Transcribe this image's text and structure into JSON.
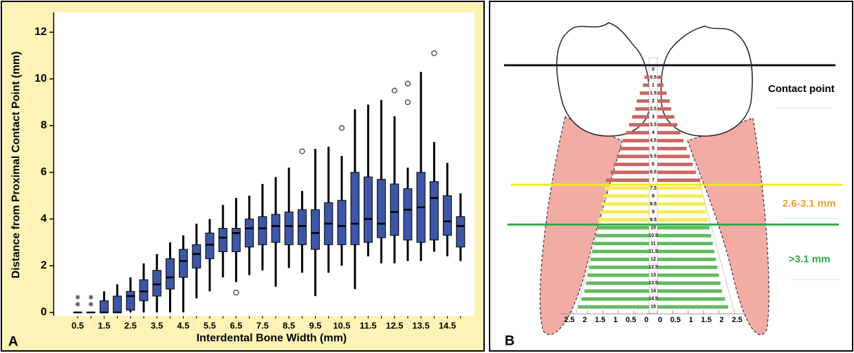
{
  "chart_data": [
    {
      "type": "box",
      "y_label": "Distance from Proximal Contact Point (mm)",
      "x_label": "Interdental Bone Width (mm)",
      "panel_label": "A",
      "categories": [
        "0.5",
        null,
        "1.5",
        null,
        "2.5",
        null,
        "3.5",
        null,
        "4.5",
        null,
        "5.5",
        null,
        "6.5",
        null,
        "7.5",
        null,
        "8.5",
        null,
        "9.5",
        null,
        "10.5",
        null,
        "11.5",
        null,
        "12.5",
        null,
        "13.5",
        null,
        "14.5",
        null
      ],
      "min": [
        0,
        0,
        0,
        0,
        0,
        0,
        0,
        0,
        0,
        0.6,
        0.9,
        1.5,
        1.3,
        1.6,
        1.8,
        1.1,
        1.9,
        1.7,
        0.7,
        1.7,
        2.0,
        1.0,
        2.4,
        2.1,
        2.1,
        2.2,
        2.2,
        2.6,
        2.4,
        2.2
      ],
      "q1": [
        0,
        0,
        0,
        0,
        0.1,
        0.5,
        0.7,
        1.0,
        1.5,
        1.9,
        2.3,
        2.6,
        2.6,
        2.8,
        2.9,
        3.0,
        2.9,
        2.9,
        2.7,
        2.9,
        2.9,
        2.9,
        3.0,
        3.2,
        3.3,
        3.1,
        3.0,
        3.1,
        3.3,
        2.8
      ],
      "median": [
        0,
        0,
        0,
        0,
        0.7,
        0.9,
        1.2,
        1.5,
        2.2,
        2.5,
        2.9,
        3.2,
        3.4,
        3.6,
        3.6,
        3.7,
        3.7,
        3.7,
        3.4,
        3.8,
        3.7,
        3.8,
        4.0,
        3.8,
        4.3,
        4.4,
        4.5,
        4.9,
        3.9,
        3.7
      ],
      "q3": [
        0,
        0,
        0.5,
        0.7,
        0.9,
        1.4,
        1.8,
        2.3,
        2.7,
        2.9,
        3.4,
        3.6,
        3.6,
        4.0,
        4.1,
        4.2,
        4.3,
        4.4,
        4.4,
        4.7,
        4.8,
        6.0,
        5.8,
        5.7,
        5.5,
        5.3,
        6.0,
        5.6,
        5.0,
        4.1
      ],
      "max": [
        0,
        0,
        0.9,
        1.2,
        1.5,
        2.1,
        2.5,
        3.0,
        3.3,
        3.8,
        4.0,
        4.6,
        4.9,
        5.0,
        5.5,
        5.8,
        6.2,
        5.2,
        7.0,
        7.1,
        6.7,
        8.7,
        8.9,
        9.1,
        8.4,
        6.2,
        10.3,
        7.3,
        6.4,
        5.1
      ],
      "outliers": [
        [],
        [],
        [],
        [],
        [],
        [],
        [],
        [],
        [],
        [],
        [],
        [],
        [
          0.85
        ],
        [],
        [],
        [],
        [],
        [
          6.9
        ],
        [],
        [],
        [
          7.9
        ],
        [],
        [],
        [],
        [
          9.5
        ],
        [
          9.8,
          9.0
        ],
        [],
        [
          11.1
        ],
        [],
        []
      ],
      "extremes": [
        [
          0.35,
          0.65
        ],
        [
          0.35,
          0.65
        ],
        [],
        [],
        [],
        [],
        [],
        [],
        [],
        [],
        [],
        [],
        [],
        [],
        [],
        [],
        [],
        [],
        [],
        [],
        [],
        [],
        [],
        [],
        [],
        [],
        [],
        [],
        [],
        []
      ],
      "color": "#3d56a6",
      "ylim": [
        -0.15,
        12.85
      ],
      "yticks": [
        0,
        2,
        4,
        6,
        8,
        10,
        12
      ]
    },
    {
      "type": "butterfly",
      "panel_label": "B",
      "categories": [
        "0",
        "0.5",
        "1",
        "1.5",
        "2",
        "2.5",
        "3",
        "3.5",
        "4",
        "4.5",
        "5",
        "5.5",
        "6",
        "6.5",
        "7",
        "7.5",
        "8",
        "8.5",
        "9",
        "9.5",
        "10",
        "10.5",
        "11",
        "11.5",
        "12",
        "12.5",
        "13",
        "13.5",
        "14",
        "14.5",
        "15"
      ],
      "values": [
        0,
        0.15,
        0.2,
        0.3,
        0.4,
        0.45,
        0.55,
        0.65,
        0.75,
        0.85,
        0.95,
        1.05,
        1.15,
        1.25,
        1.4,
        1.45,
        1.5,
        1.55,
        1.6,
        1.65,
        1.7,
        1.75,
        1.8,
        1.85,
        1.9,
        1.95,
        2.0,
        2.05,
        2.1,
        2.2,
        2.3
      ],
      "colors": [
        "#c8675f",
        "#c8675f",
        "#c8675f",
        "#c8675f",
        "#c8675f",
        "#c8675f",
        "#c8675f",
        "#c8675f",
        "#c8675f",
        "#c8675f",
        "#c8675f",
        "#c8675f",
        "#c8675f",
        "#c8675f",
        "#c8675f",
        "#f3eb5a",
        "#f3eb5a",
        "#f3eb5a",
        "#f3eb5a",
        "#f3eb5a",
        "#62bb5e",
        "#62bb5e",
        "#62bb5e",
        "#62bb5e",
        "#62bb5e",
        "#62bb5e",
        "#62bb5e",
        "#62bb5e",
        "#62bb5e",
        "#62bb5e",
        "#62bb5e"
      ],
      "xlim": [
        0,
        2.5
      ],
      "xticks": [
        0,
        0.5,
        1,
        1.5,
        2,
        2.5
      ],
      "annotations": [
        "Contact point",
        "2.6-3.1 mm",
        ">3.1 mm"
      ]
    }
  ]
}
